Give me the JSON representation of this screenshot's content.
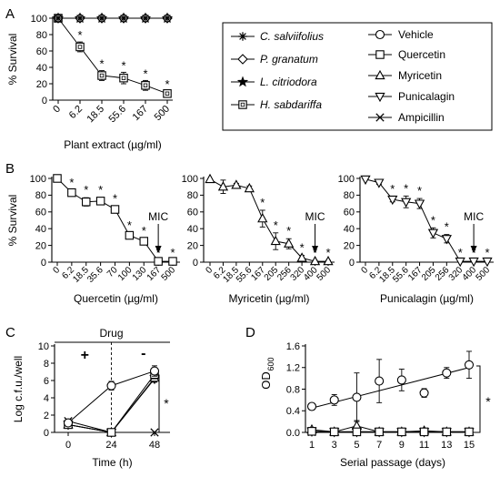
{
  "chart_data": [
    {
      "panel": "A",
      "type": "line",
      "ylabel": "% Survival",
      "xlabel": "Plant extract (µg/ml)",
      "categories": [
        "0",
        "6.2",
        "18.5",
        "55.6",
        "167",
        "500"
      ],
      "yticks": [
        "0",
        "20",
        "40",
        "60",
        "80",
        "100"
      ],
      "ylim": [
        0,
        100
      ],
      "series": [
        {
          "name": "C. salviifolius",
          "marker": "asterisk",
          "values": [
            100,
            100,
            100,
            100,
            100,
            100
          ]
        },
        {
          "name": "P. granatum",
          "marker": "diamond",
          "values": [
            100,
            100,
            100,
            100,
            100,
            100
          ]
        },
        {
          "name": "L. citriodora",
          "marker": "star",
          "values": [
            100,
            100,
            100,
            100,
            100,
            100
          ]
        },
        {
          "name": "H. sabdariffa",
          "marker": "boxed-square",
          "values": [
            100,
            65,
            30,
            27,
            18,
            8
          ],
          "errors": [
            0,
            6,
            6,
            7,
            6,
            3
          ],
          "significance": [
            "",
            "*",
            "*",
            "*",
            "*",
            "*"
          ]
        }
      ]
    },
    {
      "panel": "B",
      "type": "line",
      "ylabel": "% Survival",
      "xlabel": "Quercetin (µg/ml)",
      "categories": [
        "0",
        "6.2",
        "18.5",
        "35.6",
        "70",
        "100",
        "130",
        "167",
        "500"
      ],
      "yticks": [
        "0",
        "20",
        "40",
        "60",
        "80",
        "100"
      ],
      "ylim": [
        0,
        100
      ],
      "marker": "square",
      "values": [
        100,
        83,
        72,
        73,
        63,
        32,
        25,
        1,
        1
      ],
      "errors": [
        0,
        3,
        5,
        4,
        4,
        3,
        3,
        1,
        1
      ],
      "significance": [
        "",
        "*",
        "*",
        "*",
        "*",
        "*",
        "*",
        "*",
        "*"
      ],
      "annotation": {
        "text": "MIC",
        "category_index": 7
      }
    },
    {
      "panel": "B",
      "type": "line",
      "ylabel": "",
      "xlabel": "Myricetin (µg/ml)",
      "categories": [
        "0",
        "6.2",
        "18.5",
        "55.6",
        "167",
        "205",
        "256",
        "320",
        "400",
        "500"
      ],
      "yticks": [
        "0",
        "20",
        "40",
        "60",
        "80",
        "100"
      ],
      "ylim": [
        0,
        100
      ],
      "marker": "triangle-up",
      "values": [
        99,
        90,
        92,
        88,
        52,
        25,
        22,
        5,
        1,
        1
      ],
      "errors": [
        0,
        8,
        2,
        3,
        10,
        10,
        6,
        3,
        1,
        1
      ],
      "significance": [
        "",
        "",
        "",
        "",
        "*",
        "*",
        "*",
        "*",
        "*",
        "*"
      ],
      "annotation": {
        "text": "MIC",
        "category_index": 8
      }
    },
    {
      "panel": "B",
      "type": "line",
      "ylabel": "",
      "xlabel": "Punicalagin (µg/ml)",
      "categories": [
        "0",
        "6.2",
        "18.5",
        "55.6",
        "167",
        "205",
        "256",
        "320",
        "400",
        "500"
      ],
      "yticks": [
        "0",
        "20",
        "40",
        "60",
        "80",
        "100"
      ],
      "ylim": [
        0,
        100
      ],
      "marker": "triangle-down",
      "values": [
        99,
        95,
        75,
        72,
        70,
        35,
        28,
        1,
        1,
        1
      ],
      "errors": [
        0,
        2,
        3,
        7,
        6,
        6,
        5,
        1,
        1,
        1
      ],
      "significance": [
        "",
        "",
        "*",
        "*",
        "*",
        "*",
        "*",
        "*",
        "*",
        "*"
      ],
      "annotation": {
        "text": "MIC",
        "category_index": 8
      }
    },
    {
      "panel": "C",
      "type": "line",
      "ylabel": "Log c.f.u./well",
      "xlabel": "Time (h)",
      "x": [
        0,
        24,
        48
      ],
      "xticks": [
        "0",
        "24",
        "48"
      ],
      "yticks": [
        "0",
        "2",
        "4",
        "6",
        "8",
        "10"
      ],
      "ylim": [
        0,
        10
      ],
      "drug_label": "Drug",
      "drug_signs": [
        "+",
        "-"
      ],
      "significance": "*",
      "series": [
        {
          "name": "Vehicle",
          "marker": "circle",
          "values": [
            1.1,
            5.4,
            7.1
          ],
          "errors": [
            0.2,
            0.5,
            0.6
          ]
        },
        {
          "name": "Quercetin",
          "marker": "square",
          "values": [
            0.9,
            0.0,
            6.7
          ],
          "errors": [
            0.2,
            0,
            0.5
          ]
        },
        {
          "name": "Myricetin",
          "marker": "triangle-up",
          "values": [
            0.9,
            0.0,
            6.3
          ],
          "errors": [
            0.2,
            0,
            0.4
          ]
        },
        {
          "name": "Punicalagin",
          "marker": "triangle-down",
          "values": [
            0.9,
            0.0,
            6.2
          ],
          "errors": [
            0.2,
            0,
            0.4
          ]
        },
        {
          "name": "Ampicillin",
          "marker": "x",
          "values": [
            1.3,
            0.0,
            0.0
          ],
          "errors": [
            0.2,
            0,
            0
          ]
        }
      ]
    },
    {
      "panel": "D",
      "type": "line",
      "ylabel_main": "OD",
      "ylabel_sub": "600",
      "xlabel": "Serial passage (days)",
      "x": [
        1,
        3,
        5,
        7,
        9,
        11,
        13,
        15
      ],
      "xticks": [
        "1",
        "3",
        "5",
        "7",
        "9",
        "11",
        "13",
        "15"
      ],
      "yticks": [
        "0.0",
        "0.4",
        "0.8",
        "1.2",
        "1.6"
      ],
      "ylim": [
        0,
        1.6
      ],
      "significance": "*",
      "vehicle_trendline": [
        0.45,
        1.2
      ],
      "series": [
        {
          "name": "Vehicle",
          "marker": "circle",
          "values": [
            0.48,
            0.6,
            0.65,
            0.95,
            0.97,
            0.73,
            1.1,
            1.25
          ],
          "errors": [
            0.04,
            0.1,
            0.45,
            0.4,
            0.2,
            0.08,
            0.1,
            0.25
          ]
        },
        {
          "name": "Quercetin",
          "marker": "square",
          "values": [
            0.02,
            0.01,
            0.01,
            0.01,
            0.01,
            0.01,
            0.01,
            0.01
          ],
          "errors": [
            0.02,
            0,
            0,
            0,
            0,
            0.05,
            0,
            0
          ]
        },
        {
          "name": "Myricetin",
          "marker": "triangle-up",
          "values": [
            0.05,
            0.01,
            0.12,
            0.01,
            0.01,
            0.03,
            0.01,
            0.01
          ],
          "errors": [
            0.04,
            0,
            0.1,
            0,
            0,
            0.04,
            0,
            0
          ]
        },
        {
          "name": "Punicalagin",
          "marker": "triangle-down",
          "values": [
            0.02,
            0.01,
            0.01,
            0.01,
            0.01,
            0.01,
            0.01,
            0.01
          ],
          "errors": [
            0.02,
            0,
            0,
            0,
            0,
            0,
            0,
            0
          ]
        },
        {
          "name": "Ampicillin",
          "marker": "x",
          "values": [
            0.01,
            0.01,
            0.01,
            0.01,
            0.01,
            0.01,
            0.01,
            0.01
          ],
          "errors": [
            0,
            0,
            0,
            0,
            0,
            0,
            0,
            0
          ]
        }
      ]
    }
  ],
  "panel_labels": [
    "A",
    "B",
    "C",
    "D"
  ],
  "legend": [
    {
      "label": "C. salviifolius",
      "marker": "asterisk",
      "italic": true
    },
    {
      "label": "P. granatum",
      "marker": "diamond",
      "italic": true
    },
    {
      "label": "L. citriodora",
      "marker": "star",
      "italic": true
    },
    {
      "label": "H. sabdariffa",
      "marker": "boxed-square",
      "italic": true
    },
    {
      "label": "Vehicle",
      "marker": "circle",
      "italic": false
    },
    {
      "label": "Quercetin",
      "marker": "square",
      "italic": false
    },
    {
      "label": "Myricetin",
      "marker": "triangle-up",
      "italic": false
    },
    {
      "label": "Punicalagin",
      "marker": "triangle-down",
      "italic": false
    },
    {
      "label": "Ampicillin",
      "marker": "x",
      "italic": false
    }
  ]
}
